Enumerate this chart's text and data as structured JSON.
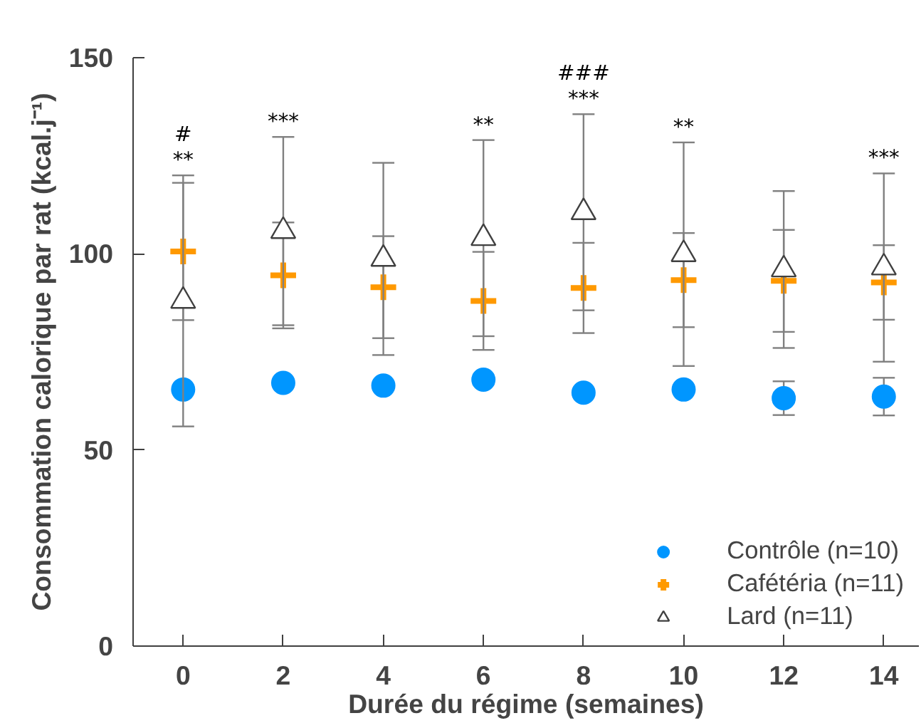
{
  "chart_data": {
    "type": "scatter",
    "xlabel": "Durée du régime (semaines)",
    "ylabel": "Consommation calorique par rat (kcal.j⁻¹)",
    "x": [
      0,
      2,
      4,
      6,
      8,
      10,
      12,
      14
    ],
    "series": [
      {
        "name": "Contrôle (n=10)",
        "color": "#0096ff",
        "marker": "circle",
        "values": [
          65.4,
          67.1,
          66.4,
          67.9,
          64.6,
          65.4,
          63.2,
          63.6
        ],
        "errors": [
          null,
          null,
          null,
          null,
          null,
          null,
          4.3,
          4.8
        ]
      },
      {
        "name": "Cafétéria (n=11)",
        "color": "#ff9900",
        "marker": "cross",
        "values": [
          100.6,
          94.5,
          91.5,
          88,
          91.3,
          93.3,
          93.1,
          92.7
        ],
        "errors": [
          17.5,
          13.5,
          13,
          12.5,
          11.5,
          12,
          13,
          9.5
        ]
      },
      {
        "name": "Lard (n=11)",
        "color": "#404040",
        "marker": "triangle",
        "values": [
          88,
          105.8,
          98.7,
          104,
          110.6,
          99.9,
          96,
          96.5
        ],
        "errors": [
          32,
          24,
          24.5,
          25,
          25,
          28.5,
          20,
          24
        ]
      }
    ],
    "xlim": [
      -1,
      14.7
    ],
    "ylim": [
      0,
      150
    ],
    "xticks": [
      0,
      2,
      4,
      6,
      8,
      10,
      12,
      14
    ],
    "yticks": [
      0,
      50,
      100,
      150
    ],
    "grid": false,
    "legend": "bottom right",
    "annotations": [
      {
        "text": "**",
        "x": 0,
        "y": 120
      },
      {
        "text": "#",
        "x": 0,
        "y": 120
      },
      {
        "text": "***",
        "x": 2,
        "y": 129.8
      },
      {
        "text": "**",
        "x": 6,
        "y": 129
      },
      {
        "text": "***",
        "x": 8,
        "y": 135.6
      },
      {
        "text": "###",
        "x": 8,
        "y": 135.6
      },
      {
        "text": "**",
        "x": 10,
        "y": 128.4
      },
      {
        "text": "***",
        "x": 14,
        "y": 120.5
      }
    ]
  }
}
